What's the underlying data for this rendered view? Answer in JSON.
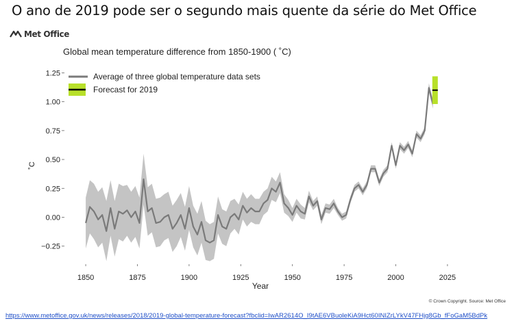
{
  "slide": {
    "title": "O ano de 2019 pode ser o segundo mais quente da série do Met Office",
    "logo_text": "Met Office",
    "copyright": "© Crown Copyright. Source: Met Office",
    "link": "https://www.metoffice.gov.uk/news/releases/2018/2019-global-temperature-forecast?fbclid=IwAR2614O_I9tAE6VBuoleKiA9Hct60INIZrLYkV47FHjg8Gb_fFoGaM5BdPk"
  },
  "colors": {
    "band": "#c4c4c4",
    "line": "#7a7a7a",
    "forecast": "#b8e02a",
    "forecast_line": "#000000"
  },
  "chart_data": {
    "type": "line",
    "title": "Global mean temperature difference from 1850-1900 ( ˚C)",
    "xlabel": "Year",
    "ylabel": "˚C",
    "xlim": [
      1845,
      2030
    ],
    "ylim": [
      -0.4,
      1.3
    ],
    "xticks": [
      1850,
      1875,
      1900,
      1925,
      1950,
      1975,
      2000,
      2025
    ],
    "yticks": [
      -0.25,
      0.0,
      0.25,
      0.5,
      0.75,
      1.0,
      1.25
    ],
    "ytick_labels": [
      "−0.25",
      "0.00",
      "0.25",
      "0.50",
      "0.75",
      "1.00",
      "1.25"
    ],
    "grid": false,
    "legend_position": "top-left",
    "series": [
      {
        "name": "Average of three global temperature data sets",
        "kind": "line_with_uncertainty_band",
        "x": [
          1850,
          1852,
          1854,
          1856,
          1858,
          1860,
          1862,
          1864,
          1866,
          1868,
          1870,
          1872,
          1874,
          1876,
          1878,
          1880,
          1882,
          1884,
          1886,
          1888,
          1890,
          1892,
          1894,
          1896,
          1898,
          1900,
          1902,
          1904,
          1906,
          1908,
          1910,
          1912,
          1914,
          1916,
          1918,
          1920,
          1922,
          1924,
          1926,
          1928,
          1930,
          1932,
          1934,
          1936,
          1938,
          1940,
          1942,
          1944,
          1946,
          1948,
          1950,
          1952,
          1954,
          1956,
          1958,
          1960,
          1962,
          1964,
          1966,
          1968,
          1970,
          1972,
          1974,
          1976,
          1978,
          1980,
          1982,
          1984,
          1986,
          1988,
          1990,
          1992,
          1994,
          1996,
          1998,
          2000,
          2002,
          2004,
          2006,
          2008,
          2010,
          2012,
          2014,
          2016,
          2018
        ],
        "y": [
          -0.05,
          0.09,
          0.05,
          -0.02,
          0.02,
          -0.12,
          0.08,
          -0.1,
          0.05,
          0.03,
          0.06,
          0.0,
          0.05,
          -0.05,
          0.33,
          0.05,
          0.08,
          -0.05,
          -0.04,
          0.0,
          0.02,
          -0.1,
          -0.05,
          0.02,
          -0.1,
          0.08,
          -0.08,
          -0.15,
          -0.04,
          -0.2,
          -0.22,
          -0.2,
          0.02,
          -0.08,
          -0.1,
          0.0,
          0.03,
          -0.02,
          0.1,
          0.04,
          0.08,
          0.05,
          0.05,
          0.12,
          0.15,
          0.25,
          0.22,
          0.3,
          0.12,
          0.08,
          0.02,
          0.1,
          0.05,
          0.03,
          0.18,
          0.1,
          0.14,
          -0.02,
          0.08,
          0.07,
          0.12,
          0.05,
          0.0,
          0.02,
          0.15,
          0.25,
          0.28,
          0.22,
          0.28,
          0.42,
          0.42,
          0.3,
          0.38,
          0.42,
          0.62,
          0.45,
          0.62,
          0.58,
          0.63,
          0.55,
          0.72,
          0.68,
          0.75,
          1.12,
          0.98
        ],
        "band_lower": [
          -0.27,
          -0.14,
          -0.19,
          -0.26,
          -0.22,
          -0.38,
          -0.16,
          -0.34,
          -0.19,
          -0.21,
          -0.16,
          -0.22,
          -0.17,
          -0.27,
          0.11,
          -0.16,
          -0.13,
          -0.26,
          -0.25,
          -0.2,
          -0.18,
          -0.3,
          -0.25,
          -0.17,
          -0.29,
          -0.11,
          -0.26,
          -0.33,
          -0.22,
          -0.37,
          -0.38,
          -0.36,
          -0.14,
          -0.23,
          -0.25,
          -0.14,
          -0.1,
          -0.15,
          -0.02,
          -0.08,
          -0.04,
          -0.06,
          -0.06,
          0.02,
          0.05,
          0.15,
          0.13,
          0.21,
          0.04,
          0.01,
          -0.04,
          0.04,
          -0.01,
          -0.02,
          0.13,
          0.06,
          0.1,
          -0.06,
          0.04,
          0.03,
          0.08,
          0.02,
          -0.03,
          -0.01,
          0.12,
          0.22,
          0.25,
          0.19,
          0.25,
          0.39,
          0.39,
          0.27,
          0.35,
          0.39,
          0.59,
          0.42,
          0.59,
          0.55,
          0.6,
          0.52,
          0.69,
          0.65,
          0.72,
          1.08,
          0.94
        ],
        "band_upper": [
          0.17,
          0.32,
          0.29,
          0.22,
          0.26,
          0.14,
          0.32,
          0.14,
          0.29,
          0.27,
          0.28,
          0.22,
          0.27,
          0.17,
          0.55,
          0.26,
          0.29,
          0.16,
          0.17,
          0.2,
          0.22,
          0.1,
          0.15,
          0.21,
          0.09,
          0.27,
          0.1,
          0.03,
          0.14,
          -0.03,
          -0.06,
          -0.04,
          0.18,
          0.07,
          0.05,
          0.14,
          0.16,
          0.11,
          0.22,
          0.16,
          0.2,
          0.16,
          0.16,
          0.22,
          0.25,
          0.35,
          0.31,
          0.39,
          0.2,
          0.15,
          0.08,
          0.16,
          0.11,
          0.08,
          0.23,
          0.14,
          0.18,
          0.02,
          0.12,
          0.11,
          0.16,
          0.08,
          0.03,
          0.05,
          0.18,
          0.28,
          0.31,
          0.25,
          0.31,
          0.45,
          0.45,
          0.33,
          0.41,
          0.45,
          0.65,
          0.48,
          0.65,
          0.61,
          0.66,
          0.58,
          0.75,
          0.71,
          0.78,
          1.16,
          1.02
        ]
      },
      {
        "name": "Forecast for 2019",
        "kind": "forecast_bar",
        "x": 2019,
        "central": 1.1,
        "lower": 0.98,
        "upper": 1.22
      }
    ]
  }
}
